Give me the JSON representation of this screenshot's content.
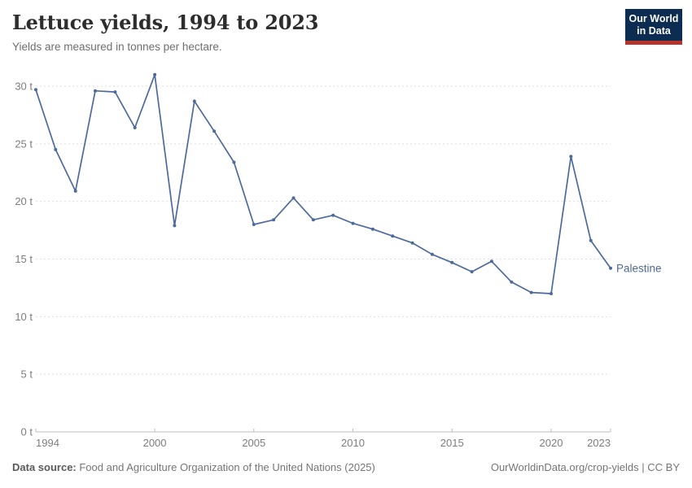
{
  "header": {
    "title": "Lettuce yields, 1994 to 2023",
    "subtitle": "Yields are measured in tonnes per hectare."
  },
  "logo": {
    "line1": "Our World",
    "line2": "in Data",
    "bg_color": "#0d2c51",
    "accent_color": "#b5342c",
    "text_color": "#ffffff"
  },
  "chart_data": {
    "type": "line",
    "title": "Lettuce yields, 1994 to 2023",
    "subtitle": "Yields are measured in tonnes per hectare.",
    "xlim": [
      1994,
      2023
    ],
    "ylim": [
      0,
      30
    ],
    "grid": "horizontal-dashed",
    "legend_position": "end-of-line-label",
    "x_ticks": [
      1994,
      2000,
      2005,
      2010,
      2015,
      2020,
      2023
    ],
    "y_ticks": [
      0,
      5,
      10,
      15,
      20,
      25,
      30
    ],
    "y_tick_suffix": " t",
    "series": [
      {
        "name": "Palestine",
        "color": "#4C6A9C",
        "x": [
          1994,
          1995,
          1996,
          1997,
          1998,
          1999,
          2000,
          2001,
          2002,
          2003,
          2004,
          2005,
          2006,
          2007,
          2008,
          2009,
          2010,
          2011,
          2012,
          2013,
          2014,
          2015,
          2016,
          2017,
          2018,
          2019,
          2020,
          2021,
          2022,
          2023
        ],
        "values": [
          29.7,
          24.5,
          20.9,
          29.6,
          29.5,
          26.4,
          31.0,
          17.9,
          28.7,
          26.1,
          23.4,
          18.0,
          18.4,
          20.3,
          18.4,
          18.8,
          18.1,
          17.6,
          17.0,
          16.4,
          15.4,
          14.7,
          13.9,
          14.8,
          13.0,
          12.1,
          12.0,
          23.9,
          16.6,
          14.2
        ]
      }
    ]
  },
  "colors": {
    "line": "#4C6A9C",
    "grid": "#dedede",
    "axis": "#bdbdbd",
    "tick_text": "#7d7d7d",
    "title_text": "#2d2d2d",
    "subtitle_text": "#6e6e6e"
  },
  "footer": {
    "source_label": "Data source:",
    "source_text": " Food and Agriculture Organization of the United Nations (2025)",
    "credit": "OurWorldinData.org/crop-yields | CC BY"
  }
}
